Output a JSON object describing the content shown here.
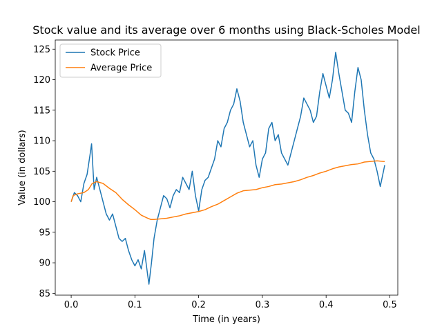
{
  "chart_data": {
    "type": "line",
    "title": "Stock value and its average over 6 months using Black-Scholes Model",
    "xlabel": "Time (in years)",
    "ylabel": "Value (in dollars)",
    "xlim": [
      -0.025,
      0.5125
    ],
    "ylim": [
      84.7,
      126.5
    ],
    "xticks": [
      0.0,
      0.1,
      0.2,
      0.3,
      0.4,
      0.5
    ],
    "xtick_labels": [
      "0.0",
      "0.1",
      "0.2",
      "0.3",
      "0.4",
      "0.5"
    ],
    "yticks": [
      85,
      90,
      95,
      100,
      105,
      110,
      115,
      120,
      125
    ],
    "ytick_labels": [
      "85",
      "90",
      "95",
      "100",
      "105",
      "110",
      "115",
      "120",
      "125"
    ],
    "grid": false,
    "legend_position": "upper-left",
    "series": [
      {
        "name": "Stock Price",
        "color": "#1f77b4",
        "points": [
          [
            0.0,
            100.0
          ],
          [
            0.005,
            101.5
          ],
          [
            0.01,
            101.0
          ],
          [
            0.015,
            100.0
          ],
          [
            0.02,
            103.0
          ],
          [
            0.025,
            104.5
          ],
          [
            0.03,
            108.0
          ],
          [
            0.032,
            109.5
          ],
          [
            0.036,
            102.0
          ],
          [
            0.04,
            104.0
          ],
          [
            0.045,
            102.0
          ],
          [
            0.05,
            100.0
          ],
          [
            0.055,
            98.0
          ],
          [
            0.06,
            97.0
          ],
          [
            0.065,
            98.0
          ],
          [
            0.07,
            96.0
          ],
          [
            0.075,
            94.0
          ],
          [
            0.08,
            93.5
          ],
          [
            0.085,
            94.0
          ],
          [
            0.09,
            92.0
          ],
          [
            0.095,
            90.5
          ],
          [
            0.1,
            89.5
          ],
          [
            0.105,
            90.5
          ],
          [
            0.11,
            89.0
          ],
          [
            0.115,
            92.0
          ],
          [
            0.12,
            88.0
          ],
          [
            0.122,
            86.5
          ],
          [
            0.126,
            90.0
          ],
          [
            0.13,
            94.0
          ],
          [
            0.135,
            97.0
          ],
          [
            0.14,
            99.0
          ],
          [
            0.145,
            101.0
          ],
          [
            0.15,
            100.5
          ],
          [
            0.155,
            99.0
          ],
          [
            0.16,
            101.0
          ],
          [
            0.165,
            102.0
          ],
          [
            0.17,
            101.5
          ],
          [
            0.175,
            104.0
          ],
          [
            0.18,
            103.0
          ],
          [
            0.185,
            102.0
          ],
          [
            0.19,
            105.0
          ],
          [
            0.195,
            101.0
          ],
          [
            0.2,
            98.5
          ],
          [
            0.205,
            102.0
          ],
          [
            0.21,
            103.5
          ],
          [
            0.215,
            104.0
          ],
          [
            0.22,
            105.5
          ],
          [
            0.225,
            107.0
          ],
          [
            0.23,
            110.0
          ],
          [
            0.235,
            109.0
          ],
          [
            0.24,
            112.0
          ],
          [
            0.245,
            113.0
          ],
          [
            0.25,
            115.0
          ],
          [
            0.255,
            116.0
          ],
          [
            0.26,
            118.5
          ],
          [
            0.265,
            116.5
          ],
          [
            0.27,
            113.0
          ],
          [
            0.275,
            111.0
          ],
          [
            0.28,
            109.0
          ],
          [
            0.285,
            110.0
          ],
          [
            0.29,
            106.0
          ],
          [
            0.295,
            104.0
          ],
          [
            0.3,
            107.0
          ],
          [
            0.305,
            108.0
          ],
          [
            0.31,
            112.0
          ],
          [
            0.315,
            113.0
          ],
          [
            0.32,
            110.0
          ],
          [
            0.325,
            111.0
          ],
          [
            0.33,
            108.0
          ],
          [
            0.335,
            107.0
          ],
          [
            0.34,
            106.0
          ],
          [
            0.345,
            108.0
          ],
          [
            0.35,
            110.0
          ],
          [
            0.355,
            112.0
          ],
          [
            0.36,
            114.0
          ],
          [
            0.365,
            117.0
          ],
          [
            0.37,
            116.0
          ],
          [
            0.375,
            115.0
          ],
          [
            0.38,
            113.0
          ],
          [
            0.385,
            114.0
          ],
          [
            0.39,
            118.0
          ],
          [
            0.395,
            121.0
          ],
          [
            0.4,
            119.0
          ],
          [
            0.405,
            117.0
          ],
          [
            0.41,
            120.0
          ],
          [
            0.415,
            124.5
          ],
          [
            0.42,
            121.0
          ],
          [
            0.425,
            118.0
          ],
          [
            0.43,
            115.0
          ],
          [
            0.435,
            114.5
          ],
          [
            0.44,
            113.0
          ],
          [
            0.445,
            118.0
          ],
          [
            0.45,
            122.0
          ],
          [
            0.455,
            120.0
          ],
          [
            0.46,
            115.0
          ],
          [
            0.465,
            111.0
          ],
          [
            0.47,
            108.0
          ],
          [
            0.475,
            107.0
          ],
          [
            0.48,
            105.0
          ],
          [
            0.485,
            102.5
          ],
          [
            0.49,
            105.0
          ],
          [
            0.492,
            106.0
          ]
        ]
      },
      {
        "name": "Average Price",
        "color": "#ff7f0e",
        "points": [
          [
            0.0,
            100.0
          ],
          [
            0.003,
            101.0
          ],
          [
            0.01,
            101.3
          ],
          [
            0.02,
            101.5
          ],
          [
            0.027,
            102.0
          ],
          [
            0.033,
            103.0
          ],
          [
            0.04,
            103.3
          ],
          [
            0.05,
            103.0
          ],
          [
            0.06,
            102.2
          ],
          [
            0.07,
            101.5
          ],
          [
            0.08,
            100.4
          ],
          [
            0.09,
            99.5
          ],
          [
            0.1,
            98.7
          ],
          [
            0.11,
            97.8
          ],
          [
            0.12,
            97.3
          ],
          [
            0.125,
            97.1
          ],
          [
            0.13,
            97.1
          ],
          [
            0.14,
            97.2
          ],
          [
            0.15,
            97.3
          ],
          [
            0.16,
            97.5
          ],
          [
            0.17,
            97.7
          ],
          [
            0.18,
            98.0
          ],
          [
            0.19,
            98.2
          ],
          [
            0.2,
            98.4
          ],
          [
            0.21,
            98.7
          ],
          [
            0.22,
            99.2
          ],
          [
            0.23,
            99.6
          ],
          [
            0.24,
            100.2
          ],
          [
            0.25,
            100.8
          ],
          [
            0.26,
            101.4
          ],
          [
            0.27,
            101.8
          ],
          [
            0.28,
            101.9
          ],
          [
            0.29,
            102.0
          ],
          [
            0.3,
            102.3
          ],
          [
            0.31,
            102.5
          ],
          [
            0.32,
            102.8
          ],
          [
            0.33,
            102.9
          ],
          [
            0.34,
            103.1
          ],
          [
            0.35,
            103.3
          ],
          [
            0.36,
            103.6
          ],
          [
            0.37,
            104.0
          ],
          [
            0.38,
            104.3
          ],
          [
            0.39,
            104.7
          ],
          [
            0.4,
            105.0
          ],
          [
            0.41,
            105.4
          ],
          [
            0.42,
            105.7
          ],
          [
            0.43,
            105.9
          ],
          [
            0.44,
            106.1
          ],
          [
            0.45,
            106.2
          ],
          [
            0.46,
            106.5
          ],
          [
            0.47,
            106.6
          ],
          [
            0.48,
            106.7
          ],
          [
            0.49,
            106.6
          ],
          [
            0.492,
            106.6
          ]
        ]
      }
    ]
  }
}
